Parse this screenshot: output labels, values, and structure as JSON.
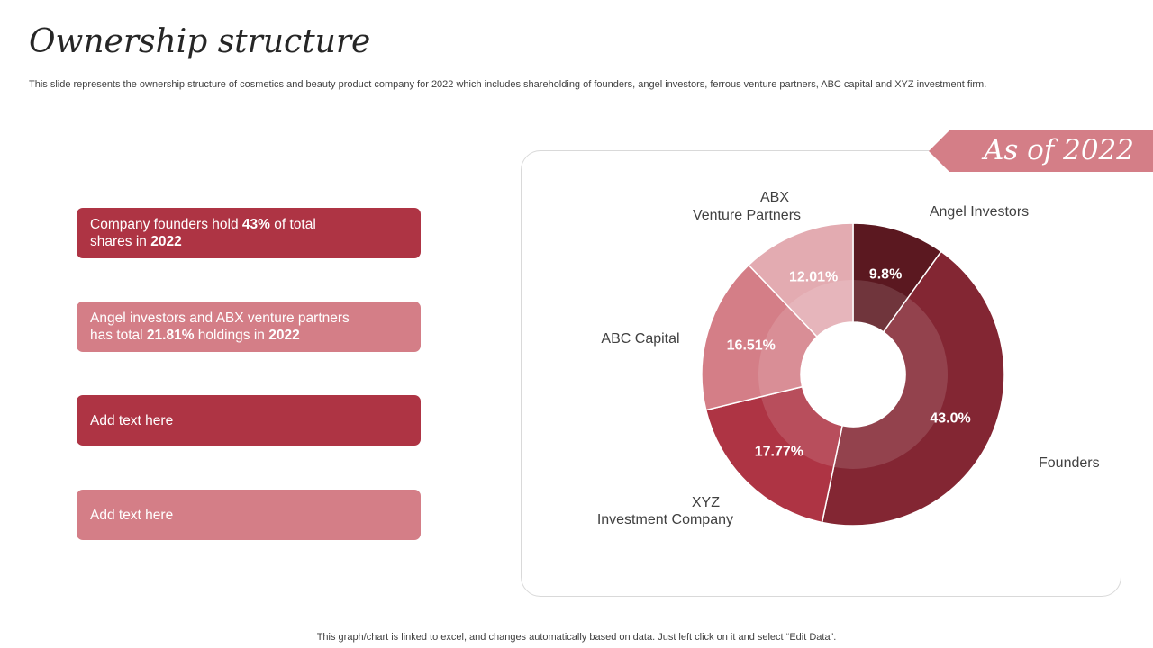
{
  "slide": {
    "title": "Ownership structure",
    "subtitle": "This slide represents the ownership structure of cosmetics and beauty product company for 2022 which includes shareholding of founders, angel investors, ferrous venture partners, ABC capital and XYZ  investment firm.",
    "badge": "As of  2022",
    "footer": "This graph/chart is linked to excel,  and changes automatically based on data. Just left click on it and select “Edit Data”."
  },
  "callouts": [
    {
      "t1": "Company founders hold ",
      "b1": "43%",
      "t2": " of total",
      "t3": "shares in ",
      "b2": "2022"
    },
    {
      "t1": "Angel investors and ABX venture  partners",
      "t2": "has total ",
      "b1": "21.81%",
      "t3": " holdings in ",
      "b2": "2022"
    },
    {
      "text": "Add text here"
    },
    {
      "text": "Add text here"
    }
  ],
  "colors": {
    "founders": "#832633",
    "angel": "#5b1820",
    "abx": "#e3abb1",
    "abc": "#d47e87",
    "xyz": "#ae3444",
    "ribbon": "#d47e87"
  },
  "chart_data": {
    "type": "pie",
    "variant": "donut",
    "categories": [
      "Founders",
      "Angel Investors",
      "ABX Venture Partners",
      "ABC Capital",
      "XYZ Investment Company"
    ],
    "values": [
      43.0,
      9.8,
      12.01,
      16.51,
      17.77
    ],
    "value_labels": [
      "43.0%",
      "9.8%",
      "12.01%",
      "16.51%",
      "17.77%"
    ],
    "category_labels": [
      [
        "Founders"
      ],
      [
        "Angel Investors"
      ],
      [
        "ABX",
        "Venture  Partners"
      ],
      [
        "ABC Capital"
      ],
      [
        "XYZ",
        "Investment   Company"
      ]
    ],
    "colors": [
      "#832633",
      "#5b1820",
      "#e3abb1",
      "#d47e87",
      "#ae3444"
    ]
  }
}
